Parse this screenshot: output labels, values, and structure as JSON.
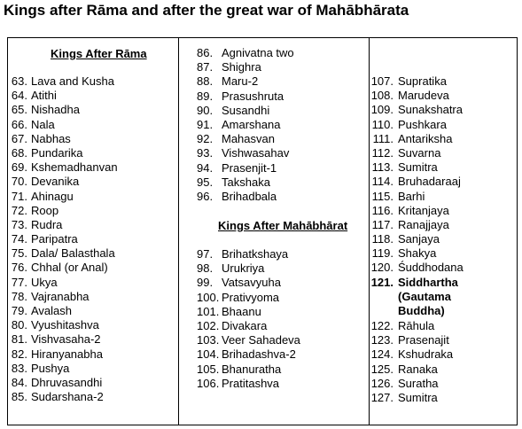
{
  "title": "Kings after Rāma and after the great war of Mahābhārata",
  "col1": {
    "heading": "Kings After Rāma",
    "items": [
      {
        "num": "63.",
        "name": "Lava and Kusha"
      },
      {
        "num": "64.",
        "name": "Atithi"
      },
      {
        "num": "65.",
        "name": "Nishadha"
      },
      {
        "num": "66.",
        "name": "Nala"
      },
      {
        "num": "67.",
        "name": "Nabhas"
      },
      {
        "num": "68.",
        "name": "Pundarika"
      },
      {
        "num": "69.",
        "name": "Kshemadhanvan"
      },
      {
        "num": "70.",
        "name": "Devanika"
      },
      {
        "num": "71.",
        "name": "Ahinagu"
      },
      {
        "num": "72.",
        "name": "Roop"
      },
      {
        "num": "73.",
        "name": "Rudra"
      },
      {
        "num": "74.",
        "name": "Paripatra"
      },
      {
        "num": "75.",
        "name": "Dala/ Balasthala"
      },
      {
        "num": "76.",
        "name": "Chhal (or Anal)"
      },
      {
        "num": "77.",
        "name": "Ukya"
      },
      {
        "num": "78.",
        "name": "Vajranabha"
      },
      {
        "num": "79.",
        "name": "Avalash"
      },
      {
        "num": "80.",
        "name": "Vyushitashva"
      },
      {
        "num": "81.",
        "name": "Vishvasaha-2"
      },
      {
        "num": "82.",
        "name": "Hiranyanabha"
      },
      {
        "num": "83.",
        "name": "Pushya"
      },
      {
        "num": "84.",
        "name": "Dhruvasandhi"
      },
      {
        "num": "85.",
        "name": "Sudarshana-2"
      }
    ]
  },
  "col2": {
    "items_top": [
      {
        "num": "86.",
        "name": "Agnivatna two"
      },
      {
        "num": "87.",
        "name": "Shighra"
      },
      {
        "num": "88.",
        "name": "Maru-2"
      },
      {
        "num": "89.",
        "name": "Prasushruta"
      },
      {
        "num": "90.",
        "name": "Susandhi"
      },
      {
        "num": "91.",
        "name": "Amarshana"
      },
      {
        "num": "92.",
        "name": "Mahasvan"
      },
      {
        "num": "93.",
        "name": "Vishwasahav"
      },
      {
        "num": "94.",
        "name": "Prasenjit-1"
      },
      {
        "num": "95.",
        "name": "Takshaka"
      },
      {
        "num": "96.",
        "name": "Brihadbala"
      }
    ],
    "heading": "Kings After  Mahābhārat",
    "items_bottom": [
      {
        "num": "97.",
        "name": "Brihatkshaya"
      },
      {
        "num": "98.",
        "name": "Urukriya"
      },
      {
        "num": "99.",
        "name": "Vatsavyuha"
      },
      {
        "num": "100.",
        "name": "Prativyoma"
      },
      {
        "num": "101.",
        "name": "Bhaanu"
      },
      {
        "num": "102.",
        "name": "Divakara"
      },
      {
        "num": "103.",
        "name": "Veer Sahadeva"
      },
      {
        "num": "104.",
        "name": "Brihadashva-2"
      },
      {
        "num": "105.",
        "name": "Bhanuratha"
      },
      {
        "num": "106.",
        "name": "Pratitashva"
      }
    ]
  },
  "col3": {
    "items_a": [
      {
        "num": "107.",
        "name": "Supratika"
      },
      {
        "num": "108.",
        "name": "Marudeva"
      },
      {
        "num": "109.",
        "name": "Sunakshatra"
      },
      {
        "num": "110.",
        "name": "Pushkara"
      },
      {
        "num": "111.",
        "name": "Antariksha"
      },
      {
        "num": "112.",
        "name": "Suvarna"
      },
      {
        "num": "113.",
        "name": "Sumitra"
      },
      {
        "num": "114.",
        "name": "Bruhadaraaj"
      },
      {
        "num": "115.",
        "name": "Barhi"
      },
      {
        "num": "116.",
        "name": "Kritanjaya"
      },
      {
        "num": "117.",
        "name": "Ranajjaya"
      },
      {
        "num": "118.",
        "name": "Sanjaya"
      },
      {
        "num": "119.",
        "name": "Shakya"
      },
      {
        "num": "120.",
        "name": "Śuddhodana"
      }
    ],
    "highlight": {
      "num": "121.",
      "name": "Siddhartha (Gautama Buddha)"
    },
    "items_b": [
      {
        "num": "122.",
        "name": "Rāhula"
      },
      {
        "num": "123.",
        "name": "Prasenajit"
      },
      {
        "num": "124.",
        "name": "Kshudraka"
      },
      {
        "num": "125.",
        "name": "Ranaka"
      },
      {
        "num": "126.",
        "name": "Suratha"
      },
      {
        "num": "127.",
        "name": "Sumitra"
      }
    ]
  }
}
